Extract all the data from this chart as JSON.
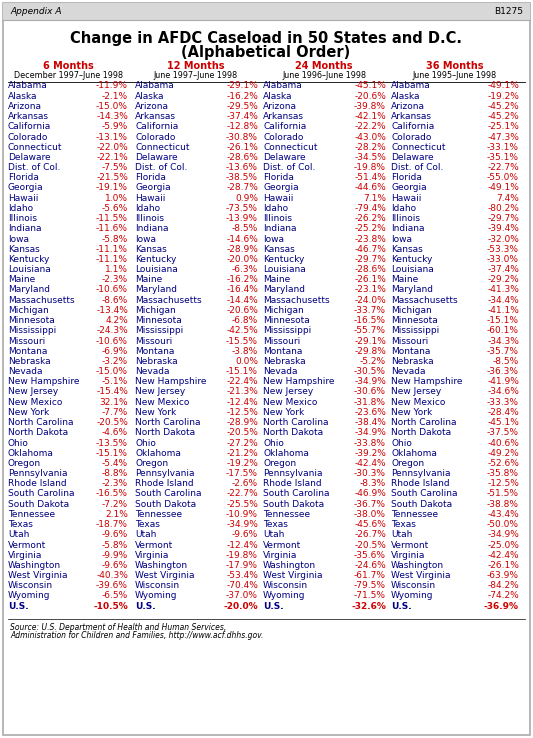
{
  "title_line1": "Change in AFDC Caseload in 50 States and D.C.",
  "title_line2": "(Alphabetical Order)",
  "col_headers": [
    "6 Months",
    "12 Months",
    "24 Months",
    "36 Months"
  ],
  "col_subheaders": [
    "December 1997–June 1998",
    "June 1997–June 1998",
    "June 1996–June 1998",
    "June 1995–June 1998"
  ],
  "states": [
    "Alabama",
    "Alaska",
    "Arizona",
    "Arkansas",
    "California",
    "Colorado",
    "Connecticut",
    "Delaware",
    "Dist. of Col.",
    "Florida",
    "Georgia",
    "Hawaii",
    "Idaho",
    "Illinois",
    "Indiana",
    "Iowa",
    "Kansas",
    "Kentucky",
    "Louisiana",
    "Maine",
    "Maryland",
    "Massachusetts",
    "Michigan",
    "Minnesota",
    "Mississippi",
    "Missouri",
    "Montana",
    "Nebraska",
    "Nevada",
    "New Hampshire",
    "New Jersey",
    "New Mexico",
    "New York",
    "North Carolina",
    "North Dakota",
    "Ohio",
    "Oklahoma",
    "Oregon",
    "Pennsylvania",
    "Rhode Island",
    "South Carolina",
    "South Dakota",
    "Tennessee",
    "Texas",
    "Utah",
    "Vermont",
    "Virginia",
    "Washington",
    "West Virginia",
    "Wisconsin",
    "Wyoming",
    "U.S."
  ],
  "data_6": [
    "-11.9%",
    "-2.1%",
    "-15.0%",
    "-14.3%",
    "-5.9%",
    "-13.1%",
    "-22.0%",
    "-22.1%",
    "-7.5%",
    "-21.5%",
    "-19.1%",
    "1.0%",
    "-5.6%",
    "-11.5%",
    "-11.6%",
    "-5.8%",
    "-11.1%",
    "-11.1%",
    "1.1%",
    "-2.3%",
    "-10.6%",
    "-8.6%",
    "-13.4%",
    "4.2%",
    "-24.3%",
    "-10.6%",
    "-6.9%",
    "-3.2%",
    "-15.0%",
    "-5.1%",
    "-15.4%",
    "32.1%",
    "-7.7%",
    "-20.5%",
    "-4.6%",
    "-13.5%",
    "-15.1%",
    "-5.4%",
    "-8.8%",
    "-2.3%",
    "-16.5%",
    "-7.2%",
    "2.1%",
    "-18.7%",
    "-9.6%",
    "-5.8%",
    "-9.9%",
    "-9.6%",
    "-40.3%",
    "-39.6%",
    "-6.5%",
    "-10.5%"
  ],
  "data_12": [
    "-29.1%",
    "-16.2%",
    "-29.5%",
    "-37.4%",
    "-12.8%",
    "-30.8%",
    "-26.1%",
    "-28.6%",
    "-13.6%",
    "-38.5%",
    "-28.7%",
    "0.9%",
    "-73.5%",
    "-13.9%",
    "-8.5%",
    "-14.6%",
    "-28.9%",
    "-20.0%",
    "-6.3%",
    "-16.2%",
    "-16.4%",
    "-14.4%",
    "-20.6%",
    "-6.8%",
    "-42.5%",
    "-15.5%",
    "-3.8%",
    "0.0%",
    "-15.1%",
    "-22.4%",
    "-21.3%",
    "-12.4%",
    "-12.5%",
    "-28.9%",
    "-20.5%",
    "-27.2%",
    "-21.2%",
    "-19.2%",
    "-17.5%",
    "-2.6%",
    "-22.7%",
    "-25.5%",
    "-10.9%",
    "-34.9%",
    "-9.6%",
    "-12.4%",
    "-19.8%",
    "-17.9%",
    "-53.4%",
    "-70.4%",
    "-37.0%",
    "-20.0%"
  ],
  "data_24": [
    "-45.1%",
    "-20.6%",
    "-39.8%",
    "-42.1%",
    "-22.2%",
    "-43.0%",
    "-28.2%",
    "-34.5%",
    "-19.8%",
    "-51.4%",
    "-44.6%",
    "7.1%",
    "-79.4%",
    "-26.2%",
    "-25.2%",
    "-23.8%",
    "-46.7%",
    "-29.7%",
    "-28.6%",
    "-26.1%",
    "-23.1%",
    "-24.0%",
    "-33.7%",
    "-16.5%",
    "-55.7%",
    "-29.1%",
    "-29.8%",
    "-5.2%",
    "-30.5%",
    "-34.9%",
    "-30.6%",
    "-31.8%",
    "-23.6%",
    "-38.4%",
    "-34.9%",
    "-33.8%",
    "-39.2%",
    "-42.4%",
    "-30.3%",
    "-8.3%",
    "-46.9%",
    "-36.7%",
    "-38.0%",
    "-45.6%",
    "-26.7%",
    "-20.5%",
    "-35.6%",
    "-24.6%",
    "-61.7%",
    "-79.5%",
    "-71.5%",
    "-32.6%"
  ],
  "data_36": [
    "-49.1%",
    "-19.2%",
    "-45.2%",
    "-45.2%",
    "-25.1%",
    "-47.3%",
    "-33.1%",
    "-35.1%",
    "-22.7%",
    "-55.0%",
    "-49.1%",
    "7.4%",
    "-80.2%",
    "-29.7%",
    "-39.4%",
    "-32.0%",
    "-53.3%",
    "-33.0%",
    "-37.4%",
    "-29.2%",
    "-41.3%",
    "-34.4%",
    "-41.1%",
    "-15.1%",
    "-60.1%",
    "-34.3%",
    "-35.7%",
    "-8.5%",
    "-36.3%",
    "-41.9%",
    "-34.6%",
    "-33.3%",
    "-28.4%",
    "-45.1%",
    "-37.5%",
    "-40.6%",
    "-49.2%",
    "-52.6%",
    "-35.8%",
    "-12.5%",
    "-51.5%",
    "-38.8%",
    "-43.4%",
    "-50.0%",
    "-34.9%",
    "-25.0%",
    "-42.4%",
    "-26.1%",
    "-63.9%",
    "-84.2%",
    "-74.2%",
    "-36.9%"
  ],
  "source_text": "Source: U.S. Department of Health and Human Services, Administration for Children and Families, http://www.acf.dhhs.gov.",
  "header_label": "Appendix A",
  "header_ref": "B1275",
  "bg_color": "#ffffff",
  "border_color": "#aaaaaa",
  "header_bg": "#d8d8d8",
  "col_header_color": "#cc0000",
  "state_color": "#000080",
  "value_color": "#cc0000",
  "title_color": "#000000",
  "source_color": "#000000"
}
